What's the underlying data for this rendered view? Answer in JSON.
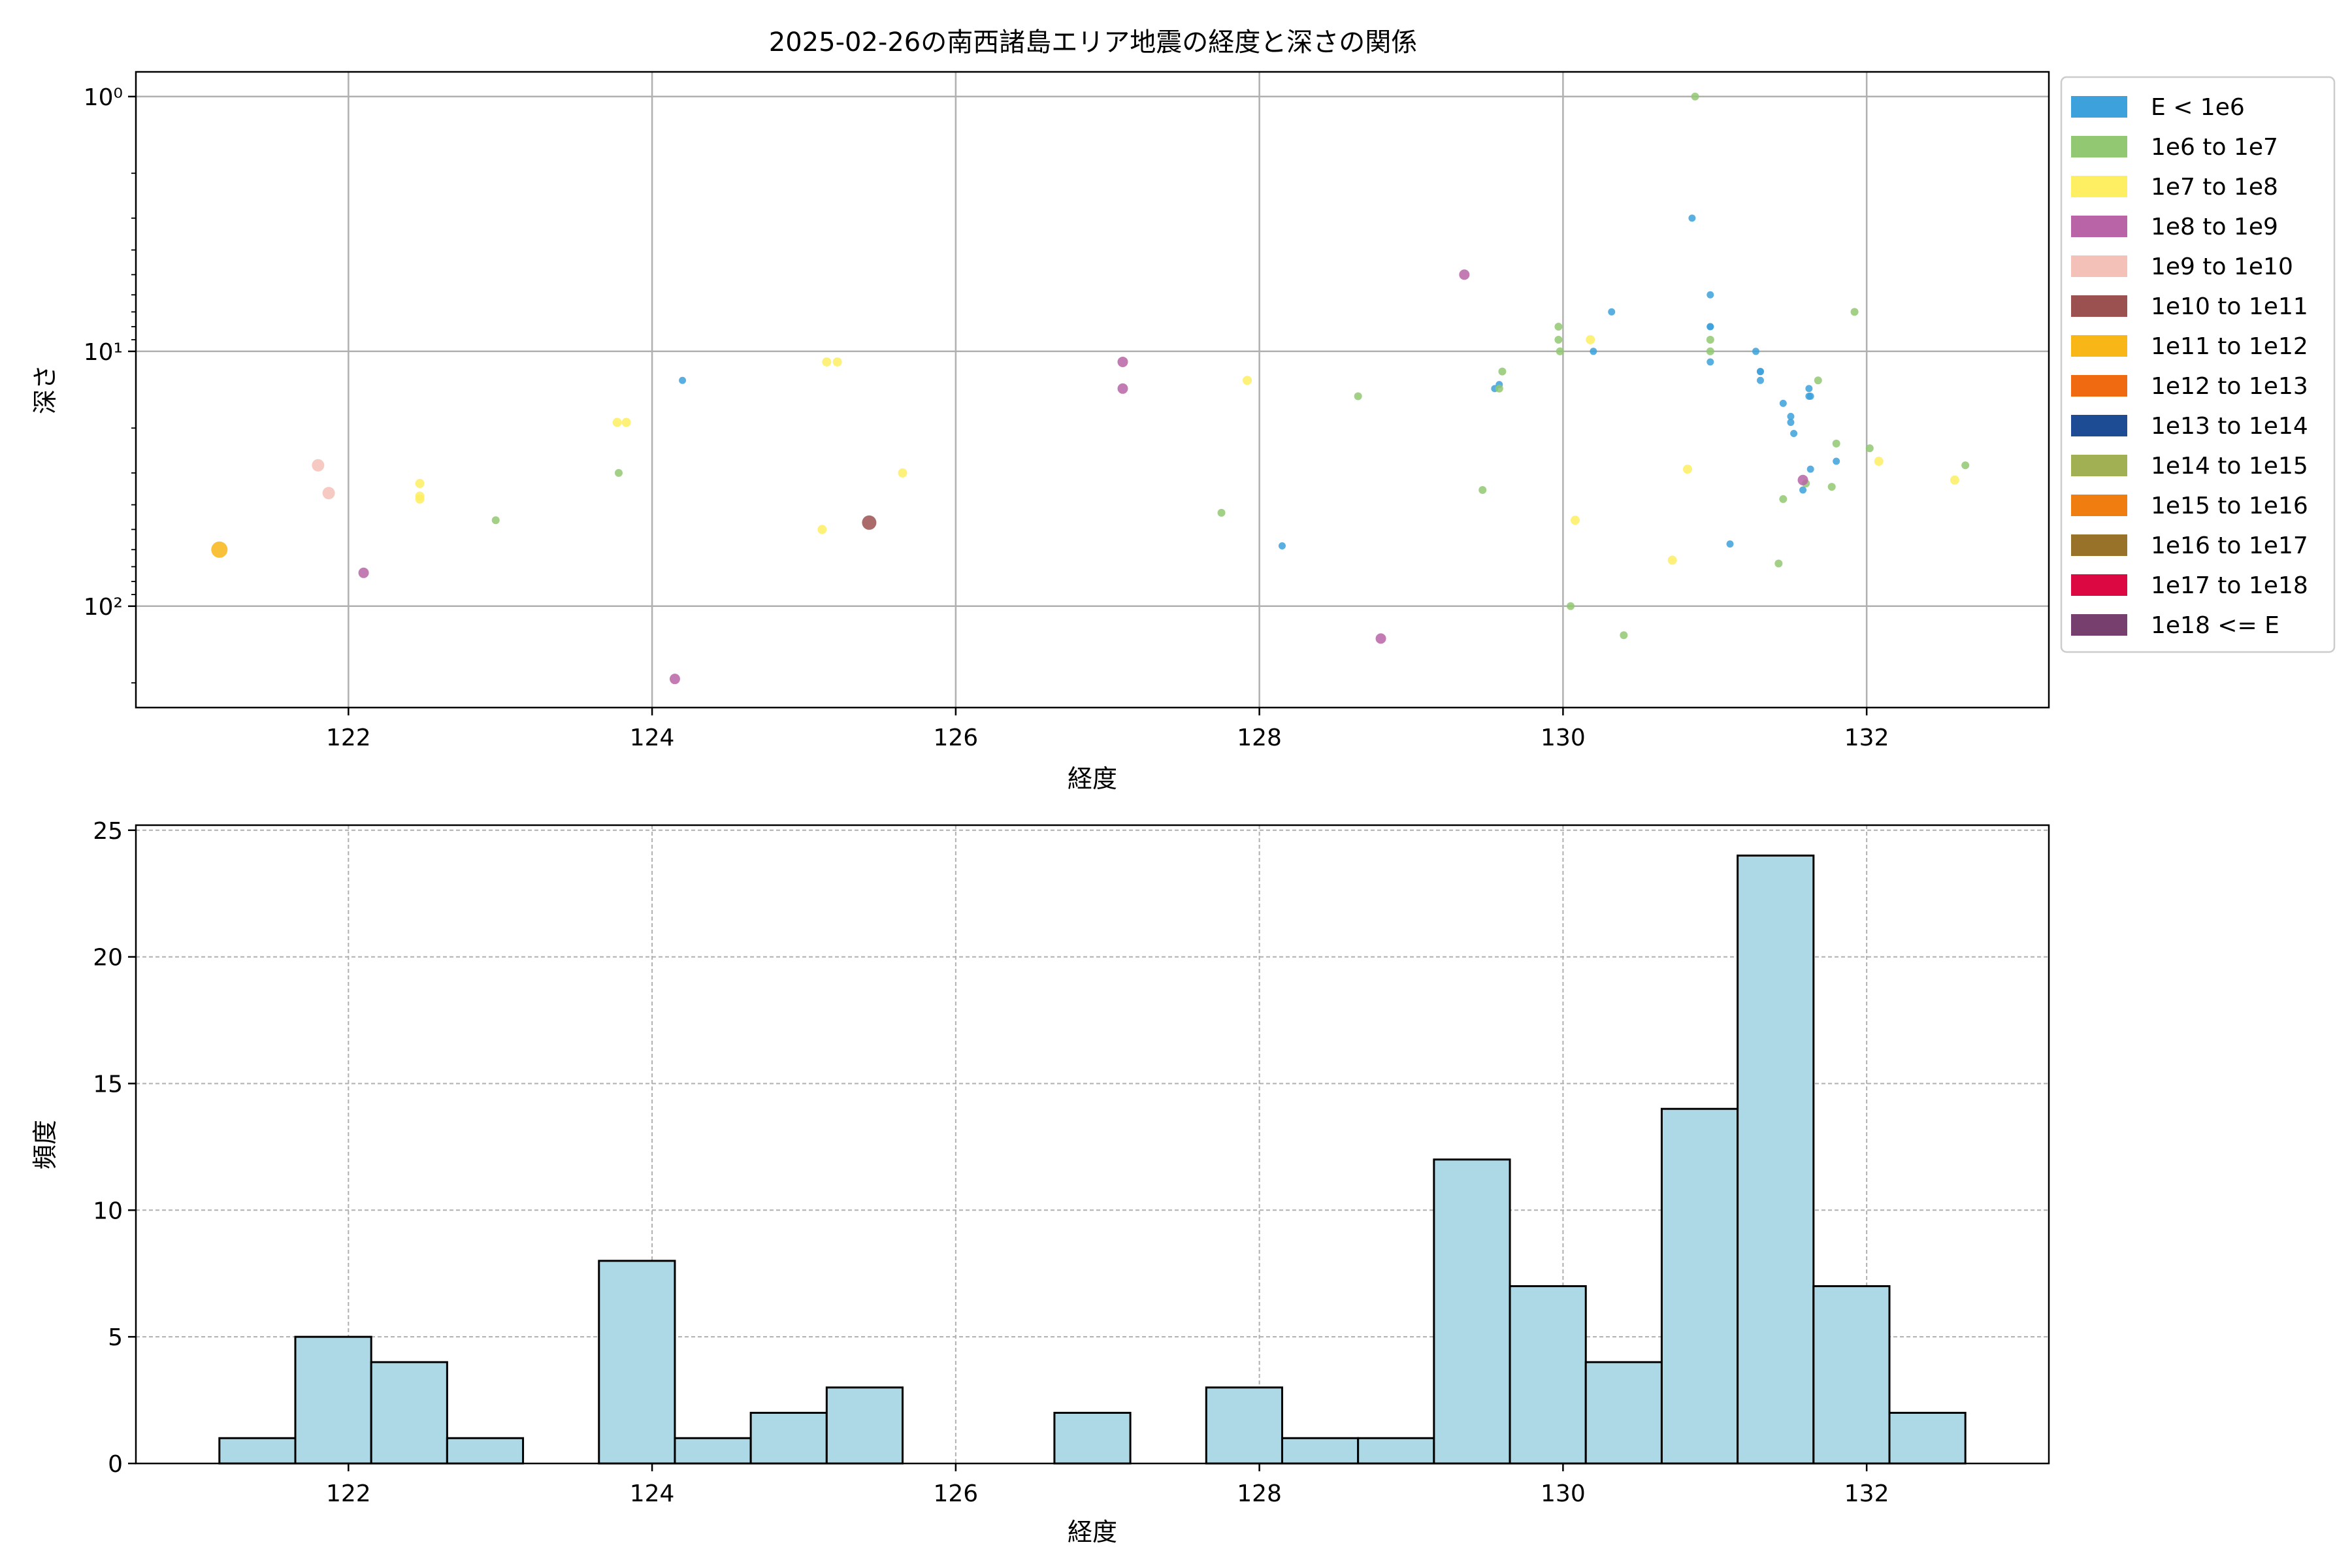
{
  "chart_data": [
    {
      "type": "scatter",
      "title": "2025-02-26の南西諸島エリア地震の経度と深さの関係",
      "xlabel": "経度",
      "ylabel": "深さ",
      "xlim": [
        120.6,
        133.2
      ],
      "ylim": [
        250,
        0.8
      ],
      "y_scale": "log",
      "y_inverted": true,
      "xticks": [
        122,
        124,
        126,
        128,
        130,
        132
      ],
      "yticks": [
        {
          "value": 1,
          "label": "10⁰"
        },
        {
          "value": 10,
          "label": "10¹"
        },
        {
          "value": 100,
          "label": "10²"
        }
      ],
      "grid": true,
      "legend_position": "outside-right",
      "legend": [
        {
          "label": "E < 1e6",
          "color": "#3da1dc"
        },
        {
          "label": "1e6 to 1e7",
          "color": "#92c872"
        },
        {
          "label": "1e7 to 1e8",
          "color": "#fdee62"
        },
        {
          "label": "1e8 to 1e9",
          "color": "#b864a6"
        },
        {
          "label": "1e9 to 1e10",
          "color": "#f4c1b9"
        },
        {
          "label": "1e10 to 1e11",
          "color": "#9b5150"
        },
        {
          "label": "1e11 to 1e12",
          "color": "#f8b617"
        },
        {
          "label": "1e12 to 1e13",
          "color": "#ef6a10"
        },
        {
          "label": "1e13 to 1e14",
          "color": "#1d4c94"
        },
        {
          "label": "1e14 to 1e15",
          "color": "#a0b053"
        },
        {
          "label": "1e15 to 1e16",
          "color": "#ef7d10"
        },
        {
          "label": "1e16 to 1e17",
          "color": "#99722a"
        },
        {
          "label": "1e17 to 1e18",
          "color": "#db0841"
        },
        {
          "label": "1e18 <= E",
          "color": "#763f6e"
        }
      ],
      "series": [
        {
          "class": 0,
          "points": [
            [
              124.2,
              13
            ],
            [
              128.15,
              58
            ],
            [
              130.2,
              10
            ],
            [
              130.32,
              7
            ],
            [
              130.85,
              3
            ],
            [
              130.97,
              6
            ],
            [
              130.97,
              8
            ],
            [
              130.97,
              8
            ],
            [
              130.97,
              11
            ],
            [
              131.1,
              57
            ],
            [
              131.27,
              10
            ],
            [
              131.3,
              12
            ],
            [
              131.3,
              12
            ],
            [
              131.3,
              13
            ],
            [
              131.45,
              16
            ],
            [
              131.5,
              18
            ],
            [
              131.5,
              19
            ],
            [
              131.52,
              21
            ],
            [
              131.58,
              35
            ],
            [
              131.62,
              14
            ],
            [
              131.62,
              15
            ],
            [
              131.63,
              15
            ],
            [
              131.63,
              29
            ],
            [
              131.8,
              27
            ],
            [
              129.55,
              14
            ],
            [
              129.58,
              13.5
            ]
          ]
        },
        {
          "class": 1,
          "points": [
            [
              122.97,
              46
            ],
            [
              123.78,
              30
            ],
            [
              127.75,
              43
            ],
            [
              128.65,
              15
            ],
            [
              129.47,
              35
            ],
            [
              129.6,
              12
            ],
            [
              129.58,
              14
            ],
            [
              129.97,
              8
            ],
            [
              129.97,
              9
            ],
            [
              129.98,
              10
            ],
            [
              130.05,
              100
            ],
            [
              130.4,
              130
            ],
            [
              130.87,
              1
            ],
            [
              130.97,
              9
            ],
            [
              130.97,
              10
            ],
            [
              131.42,
              68
            ],
            [
              131.45,
              38
            ],
            [
              131.6,
              33
            ],
            [
              131.68,
              13
            ],
            [
              131.77,
              34
            ],
            [
              131.8,
              23
            ],
            [
              131.92,
              7
            ],
            [
              132.02,
              24
            ],
            [
              132.65,
              28
            ]
          ]
        },
        {
          "class": 2,
          "points": [
            [
              122.47,
              33
            ],
            [
              122.47,
              37
            ],
            [
              122.47,
              38
            ],
            [
              123.77,
              19
            ],
            [
              123.83,
              19
            ],
            [
              125.12,
              50
            ],
            [
              125.15,
              11
            ],
            [
              125.22,
              11
            ],
            [
              125.65,
              30
            ],
            [
              127.92,
              13
            ],
            [
              130.08,
              46
            ],
            [
              130.18,
              9
            ],
            [
              130.72,
              66
            ],
            [
              130.82,
              29
            ],
            [
              132.08,
              27
            ],
            [
              132.58,
              32
            ]
          ]
        },
        {
          "class": 3,
          "points": [
            [
              122.1,
              74
            ],
            [
              124.15,
              193
            ],
            [
              127.1,
              11
            ],
            [
              127.1,
              14
            ],
            [
              128.8,
              134
            ],
            [
              129.35,
              5
            ],
            [
              131.58,
              32
            ]
          ]
        },
        {
          "class": 4,
          "points": [
            [
              121.8,
              28
            ],
            [
              121.87,
              36
            ]
          ]
        },
        {
          "class": 5,
          "points": [
            [
              125.43,
              47
            ]
          ]
        },
        {
          "class": 6,
          "points": [
            [
              121.15,
              60
            ]
          ]
        }
      ]
    },
    {
      "type": "bar",
      "subtype": "histogram",
      "xlabel": "経度",
      "ylabel": "頻度",
      "xlim": [
        120.6,
        133.2
      ],
      "ylim": [
        0,
        25.2
      ],
      "xticks": [
        122,
        124,
        126,
        128,
        130,
        132
      ],
      "yticks": [
        0,
        5,
        10,
        15,
        20,
        25
      ],
      "grid": true,
      "bar_color": "#add8e6",
      "edge_color": "#000000",
      "bin_edges": [
        121.15,
        121.65,
        122.15,
        122.65,
        123.15,
        123.65,
        124.15,
        124.65,
        125.15,
        125.65,
        126.15,
        126.65,
        127.15,
        127.65,
        128.15,
        128.65,
        129.15,
        129.65,
        130.15,
        130.65,
        131.15,
        131.65,
        132.15,
        132.65
      ],
      "values": [
        1,
        5,
        4,
        1,
        0,
        8,
        1,
        2,
        3,
        0,
        0,
        2,
        0,
        3,
        1,
        1,
        12,
        7,
        4,
        14,
        24,
        7,
        2
      ]
    }
  ]
}
